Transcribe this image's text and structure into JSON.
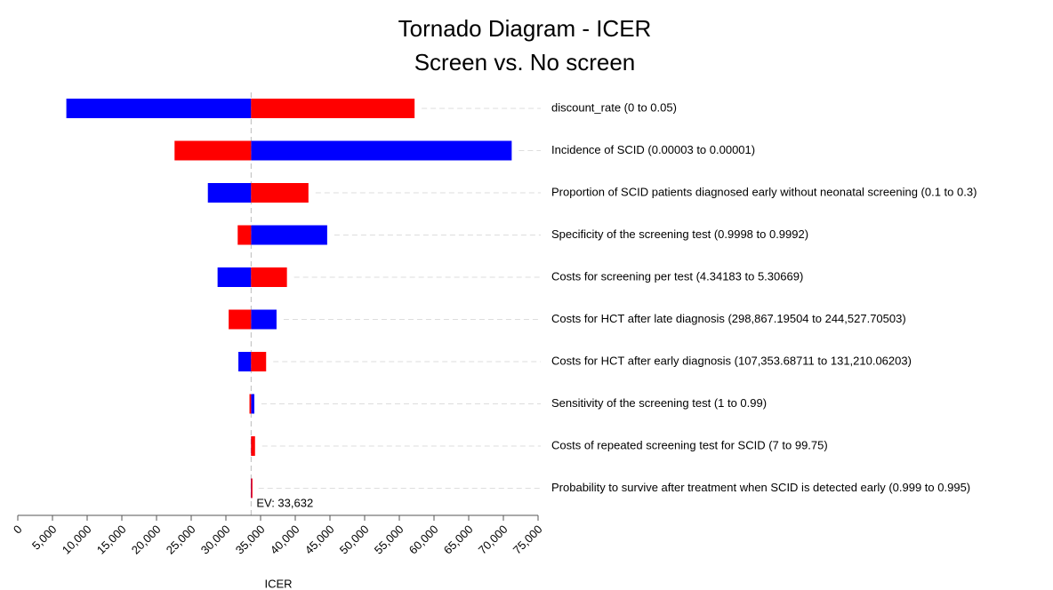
{
  "chart_data": {
    "type": "tornado",
    "title": "Tornado Diagram - ICER",
    "subtitle": "Screen vs. No screen",
    "x_label": "ICER",
    "baseline": {
      "value": 33632,
      "label": "EV: 33,632"
    },
    "categories": [
      "discount_rate (0 to 0.05)",
      "Incidence of SCID (0.00003 to 0.00001)",
      "Proportion of SCID patients diagnosed early without neonatal screening (0.1 to 0.3)",
      "Specificity of the screening test (0.9998 to 0.9992)",
      "Costs for screening per test (4.34183 to 5.30669)",
      "Costs for HCT after late diagnosis (298,867.19504 to 244,527.70503)",
      "Costs for HCT after early diagnosis (107,353.68711 to 131,210.06203)",
      "Sensitivity of the screening test (1 to 0.99)",
      "Costs of repeated screening test for SCID (7 to 99.75)",
      "Probability to survive after treatment when SCID is detected early (0.999 to 0.995)"
    ],
    "series": [
      {
        "color": "#0000ff",
        "values": [
          7000,
          71200,
          27400,
          44600,
          28800,
          37300,
          31800,
          34100,
          33632,
          33600
        ]
      },
      {
        "color": "#ff0000",
        "values": [
          57200,
          22600,
          41900,
          31700,
          38800,
          30400,
          35800,
          33400,
          34200,
          33680
        ]
      }
    ],
    "xlim": [
      0,
      75000
    ],
    "xticks": [
      0,
      {
        "value": 5000,
        "label": "5,000"
      },
      {
        "value": 10000,
        "label": "10,000"
      },
      {
        "value": 15000,
        "label": "15,000"
      },
      {
        "value": 20000,
        "label": "20,000"
      },
      {
        "value": 25000,
        "label": "25,000"
      },
      {
        "value": 30000,
        "label": "30,000"
      },
      {
        "value": 35000,
        "label": "35,000"
      },
      {
        "value": 40000,
        "label": "40,000"
      },
      {
        "value": 45000,
        "label": "45,000"
      },
      {
        "value": 50000,
        "label": "50,000"
      },
      {
        "value": 55000,
        "label": "55,000"
      },
      {
        "value": 60000,
        "label": "60,000"
      },
      {
        "value": 65000,
        "label": "65,000"
      },
      {
        "value": 70000,
        "label": "70,000"
      },
      {
        "value": 75000,
        "label": "75,000"
      }
    ]
  }
}
